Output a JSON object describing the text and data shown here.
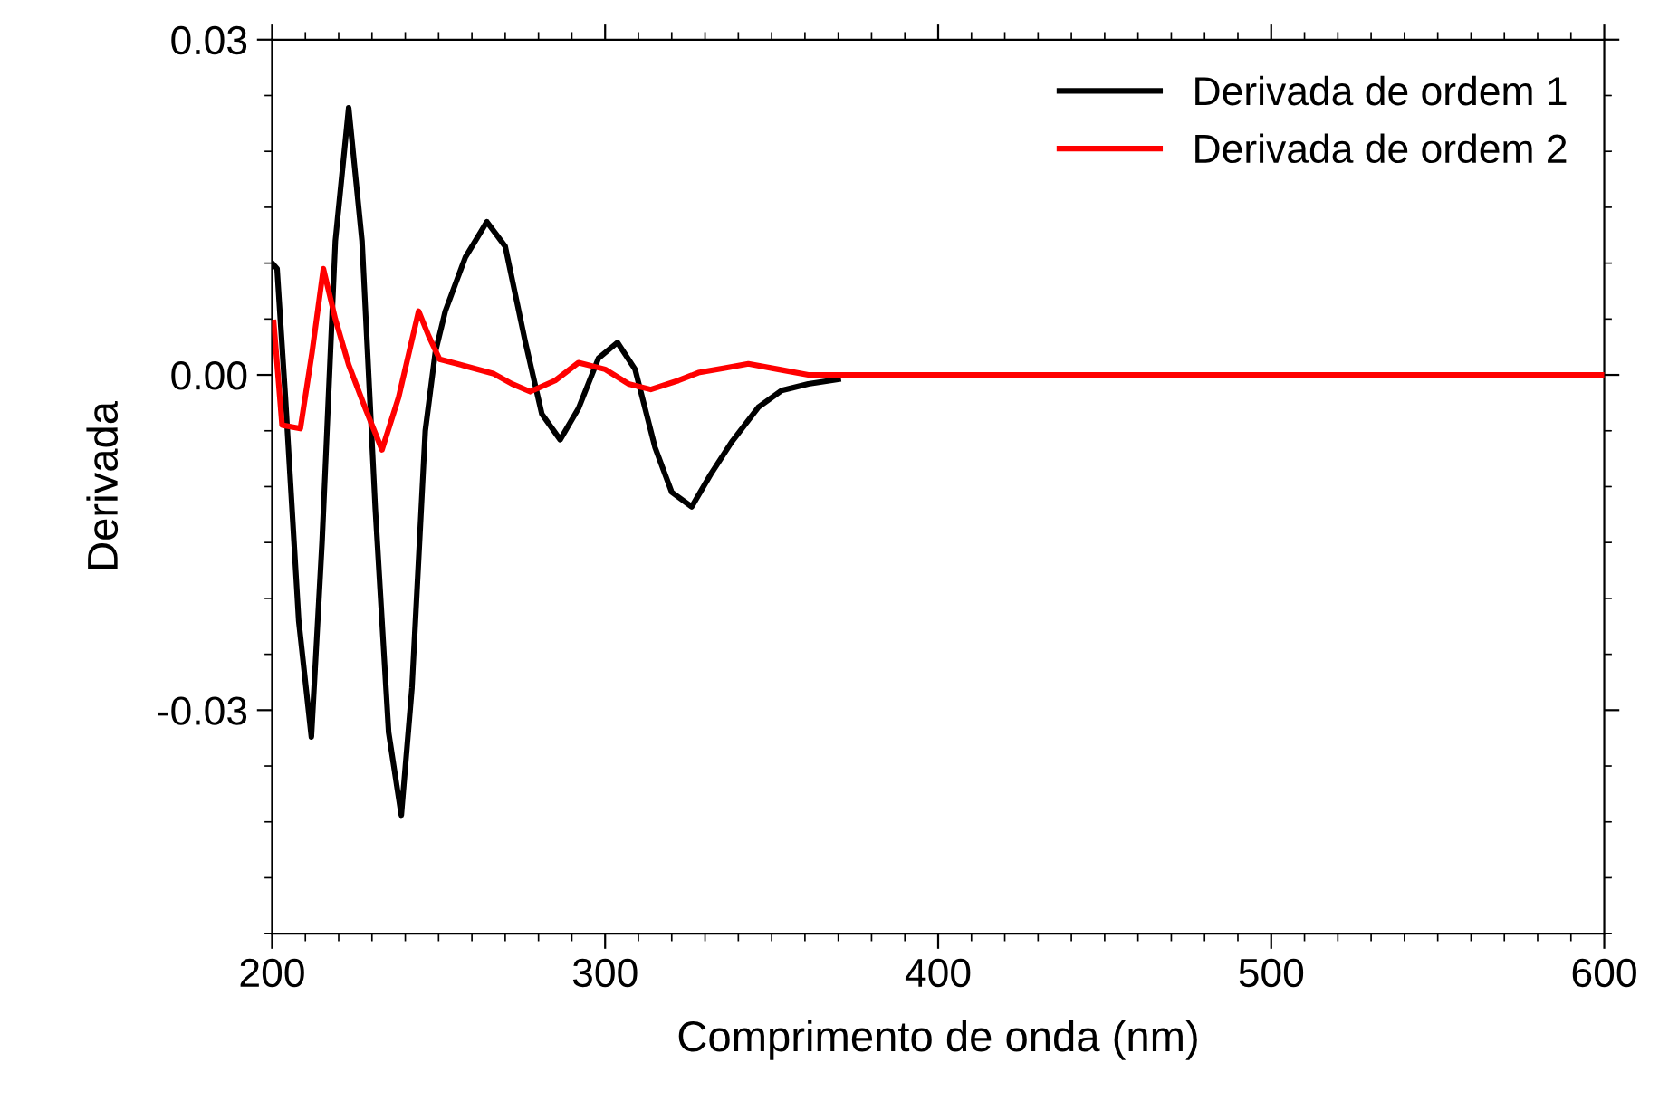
{
  "chart_data": {
    "type": "line",
    "xlabel": "Comprimento de onda (nm)",
    "ylabel": "Derivada",
    "xlim": [
      200,
      600
    ],
    "xticks": [
      200,
      300,
      400,
      500,
      600
    ],
    "ylim": [
      -0.05,
      0.03
    ],
    "yticks": [
      {
        "value": -0.03,
        "label": "-0.03"
      },
      {
        "value": 0,
        "label": "0.00"
      },
      {
        "value": 0.03,
        "label": "0.03"
      }
    ],
    "grid": false,
    "legend": "top right",
    "marker": "none",
    "line_style": "solid",
    "series": [
      {
        "name": "Derivada de ordem 1",
        "color": "#000000",
        "x": [
          200,
          201.5,
          204,
          208,
          211.8,
          215,
          219,
          223,
          227,
          231,
          235,
          238.8,
          242,
          246,
          249,
          252,
          258,
          264.5,
          270,
          276,
          281,
          286.5,
          292,
          298,
          303.7,
          309,
          315,
          320,
          326,
          331.7,
          338,
          346,
          353,
          361,
          370
        ],
        "values": [
          0.01,
          0.0095,
          -0.002,
          -0.022,
          -0.0324,
          -0.015,
          0.012,
          0.0239,
          0.012,
          -0.012,
          -0.032,
          -0.0394,
          -0.028,
          -0.005,
          0.002,
          0.0057,
          0.0105,
          0.0137,
          0.0115,
          0.003,
          -0.0035,
          -0.0058,
          -0.003,
          0.0015,
          0.0029,
          0.0005,
          -0.0065,
          -0.0105,
          -0.0118,
          -0.0089,
          -0.006,
          -0.0029,
          -0.0014,
          -0.0008,
          -0.0004
        ]
      },
      {
        "name": "Derivada de ordem 2",
        "color": "#ff0000",
        "x": [
          200.5,
          203,
          208.5,
          212,
          215.4,
          219,
          223,
          228,
          233,
          238,
          244,
          247,
          250.3,
          258,
          266.6,
          272,
          277.5,
          285,
          292,
          300,
          307,
          313.7,
          322,
          328,
          335.5,
          343,
          352,
          361,
          380,
          400,
          450,
          500,
          550,
          600
        ],
        "values": [
          0.0047,
          -0.0045,
          -0.0048,
          0.002,
          0.0095,
          0.005,
          0.0009,
          -0.003,
          -0.0067,
          -0.002,
          0.0057,
          0.0035,
          0.0014,
          0.0008,
          0.0001,
          -0.0008,
          -0.0015,
          -0.0005,
          0.0011,
          0.0005,
          -0.0008,
          -0.0013,
          -0.0005,
          0.0002,
          0.0006,
          0.001,
          0.0005,
          0,
          0,
          0,
          0,
          0,
          0,
          0
        ]
      }
    ]
  }
}
